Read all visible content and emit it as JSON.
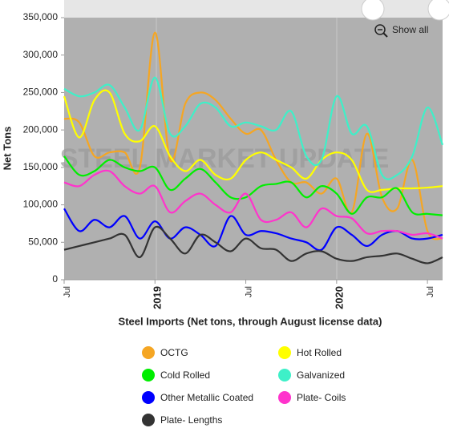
{
  "chart_data": {
    "type": "line",
    "watermark": "STEEL MARKET UPDATE",
    "show_all": "Show all",
    "ylabel": "Net Tons",
    "xlabel": "Steel Imports (Net tons, through August license data)",
    "categories": [
      "Jul",
      null,
      null,
      null,
      null,
      null,
      "2019",
      null,
      null,
      null,
      null,
      null,
      "Jul",
      null,
      null,
      null,
      null,
      null,
      "2020",
      null,
      null,
      null,
      null,
      null,
      "Jul",
      null
    ],
    "ylim": [
      0,
      350000
    ],
    "yticks": [
      {
        "value": 0,
        "label": "0"
      },
      {
        "value": 50000,
        "label": "50,000"
      },
      {
        "value": 100000,
        "label": "100,000"
      },
      {
        "value": 150000,
        "label": "150,000"
      },
      {
        "value": 200000,
        "label": "200,000"
      },
      {
        "value": 250000,
        "label": "250,000"
      },
      {
        "value": 300000,
        "label": "300,000"
      },
      {
        "value": 350000,
        "label": "350,000"
      }
    ],
    "grid": false,
    "series": [
      {
        "name": "OCTG",
        "color": "#f5a623",
        "values": [
          215000,
          210000,
          165000,
          170000,
          170000,
          150000,
          330000,
          160000,
          235000,
          250000,
          240000,
          215000,
          195000,
          200000,
          160000,
          130000,
          130000,
          115000,
          135000,
          90000,
          195000,
          110000,
          95000,
          160000,
          65000,
          55000
        ]
      },
      {
        "name": "Hot Rolled",
        "color": "#ffff00",
        "values": [
          245000,
          190000,
          240000,
          250000,
          195000,
          185000,
          205000,
          165000,
          145000,
          160000,
          140000,
          135000,
          160000,
          170000,
          160000,
          150000,
          135000,
          160000,
          170000,
          160000,
          120000,
          120000,
          122000,
          122000,
          123000,
          125000
        ]
      },
      {
        "name": "Cold Rolled",
        "color": "#00ee00",
        "values": [
          165000,
          140000,
          145000,
          160000,
          150000,
          145000,
          150000,
          120000,
          135000,
          148000,
          130000,
          110000,
          110000,
          125000,
          128000,
          130000,
          110000,
          125000,
          115000,
          88000,
          110000,
          110000,
          122000,
          90000,
          88000,
          86000
        ]
      },
      {
        "name": "Galvanized",
        "color": "#3ef0c8",
        "values": [
          255000,
          245000,
          250000,
          260000,
          230000,
          200000,
          270000,
          195000,
          205000,
          235000,
          230000,
          205000,
          210000,
          205000,
          200000,
          225000,
          165000,
          160000,
          245000,
          195000,
          205000,
          140000,
          140000,
          165000,
          230000,
          180000
        ]
      },
      {
        "name": "Other Metallic Coated",
        "color": "#0000ff",
        "values": [
          95000,
          65000,
          80000,
          70000,
          85000,
          55000,
          78000,
          55000,
          70000,
          60000,
          45000,
          85000,
          60000,
          65000,
          62000,
          55000,
          50000,
          40000,
          70000,
          60000,
          45000,
          60000,
          65000,
          55000,
          55000,
          60000
        ]
      },
      {
        "name": "Plate- Coils",
        "color": "#ff33cc",
        "values": [
          130000,
          125000,
          140000,
          145000,
          125000,
          115000,
          125000,
          90000,
          105000,
          115000,
          100000,
          90000,
          115000,
          80000,
          80000,
          90000,
          70000,
          95000,
          85000,
          82000,
          62000,
          65000,
          65000,
          60000,
          62000,
          55000
        ]
      },
      {
        "name": "Plate- Lengths",
        "color": "#333333",
        "values": [
          40000,
          45000,
          50000,
          55000,
          60000,
          30000,
          70000,
          55000,
          35000,
          60000,
          50000,
          38000,
          55000,
          42000,
          40000,
          25000,
          35000,
          38000,
          28000,
          25000,
          30000,
          32000,
          35000,
          28000,
          22000,
          30000
        ]
      }
    ]
  }
}
